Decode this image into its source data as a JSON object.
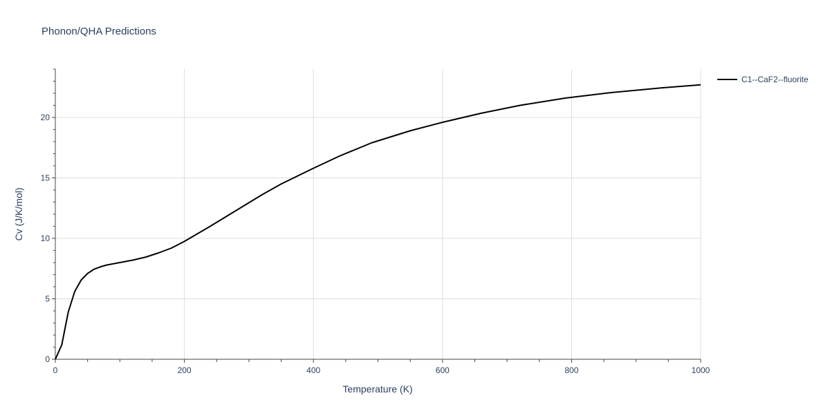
{
  "chart_data": {
    "type": "line",
    "title": "Phonon/QHA Predictions",
    "xlabel": "Temperature (K)",
    "ylabel": "Cv (J/K/mol)",
    "xlim": [
      0,
      1000
    ],
    "ylim": [
      0,
      24
    ],
    "x_ticks": [
      0,
      200,
      400,
      600,
      800,
      1000
    ],
    "y_ticks": [
      0,
      5,
      10,
      15,
      20
    ],
    "x_tick_labels": [
      "0",
      "200",
      "400",
      "600",
      "800",
      "1000"
    ],
    "y_tick_labels": [
      "0",
      "5",
      "10",
      "15",
      "20"
    ],
    "grid": true,
    "legend_position": "top-right",
    "series": [
      {
        "name": "C1--CaF2--fluorite",
        "color": "#000000",
        "x": [
          0,
          10,
          20,
          30,
          40,
          50,
          60,
          70,
          80,
          100,
          120,
          140,
          160,
          180,
          200,
          240,
          280,
          320,
          350,
          400,
          440,
          490,
          550,
          600,
          660,
          720,
          790,
          860,
          940,
          1000
        ],
        "y": [
          0,
          1.2,
          3.9,
          5.6,
          6.55,
          7.1,
          7.45,
          7.65,
          7.8,
          8.0,
          8.2,
          8.45,
          8.8,
          9.2,
          9.75,
          11.0,
          12.3,
          13.6,
          14.5,
          15.8,
          16.8,
          17.9,
          18.9,
          19.6,
          20.35,
          21.0,
          21.6,
          22.05,
          22.45,
          22.7
        ]
      }
    ]
  }
}
